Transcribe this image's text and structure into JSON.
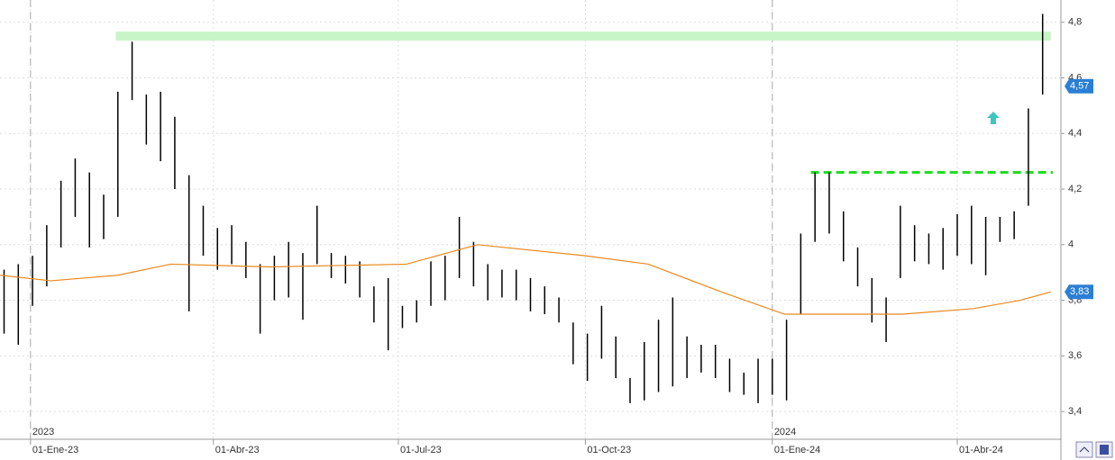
{
  "chart_data": {
    "type": "range-bar",
    "xlim": [
      "2022-12-17",
      "2024-05-22"
    ],
    "ylim": [
      3.3,
      4.88
    ],
    "yticks": [
      {
        "value": 3.4,
        "label": "3,4"
      },
      {
        "value": 3.6,
        "label": "3,6"
      },
      {
        "value": 3.8,
        "label": "3,8"
      },
      4,
      {
        "value": 4.2,
        "label": "4,2"
      },
      {
        "value": 4.4,
        "label": "4,4"
      },
      {
        "value": 4.6,
        "label": "4,6"
      },
      {
        "value": 4.8,
        "label": "4,8"
      }
    ],
    "xticks": [
      {
        "value": "2023-01-01",
        "label": "01-Ene-23"
      },
      {
        "value": "2023-04-01",
        "label": "01-Abr-23"
      },
      {
        "value": "2023-07-01",
        "label": "01-Jul-23"
      },
      {
        "value": "2023-10-01",
        "label": "01-Oct-23"
      },
      {
        "value": "2024-01-01",
        "label": "01-Ene-24"
      },
      {
        "value": "2024-04-01",
        "label": "01-Abr-24"
      }
    ],
    "year_markers": [
      {
        "value": "2023-01-01",
        "label": "2023"
      },
      {
        "value": "2024-01-01",
        "label": "2024"
      }
    ],
    "grid": true,
    "series": [
      {
        "color": "#000000",
        "x": [
          "2022-12-19",
          "2022-12-26",
          "2023-01-02",
          "2023-01-09",
          "2023-01-16",
          "2023-01-23",
          "2023-01-30",
          "2023-02-06",
          "2023-02-13",
          "2023-02-20",
          "2023-02-27",
          "2023-03-06",
          "2023-03-13",
          "2023-03-20",
          "2023-03-27",
          "2023-04-03",
          "2023-04-10",
          "2023-04-17",
          "2023-04-24",
          "2023-05-01",
          "2023-05-08",
          "2023-05-15",
          "2023-05-22",
          "2023-05-29",
          "2023-06-05",
          "2023-06-12",
          "2023-06-19",
          "2023-06-26",
          "2023-07-03",
          "2023-07-10",
          "2023-07-17",
          "2023-07-24",
          "2023-07-31",
          "2023-08-07",
          "2023-08-14",
          "2023-08-21",
          "2023-08-28",
          "2023-09-04",
          "2023-09-11",
          "2023-09-18",
          "2023-09-25",
          "2023-10-02",
          "2023-10-09",
          "2023-10-16",
          "2023-10-23",
          "2023-10-30",
          "2023-11-06",
          "2023-11-13",
          "2023-11-20",
          "2023-11-27",
          "2023-12-04",
          "2023-12-11",
          "2023-12-18",
          "2023-12-25",
          "2024-01-01",
          "2024-01-08",
          "2024-01-15",
          "2024-01-22",
          "2024-01-29",
          "2024-02-05",
          "2024-02-12",
          "2024-02-19",
          "2024-02-26",
          "2024-03-04",
          "2024-03-11",
          "2024-03-18",
          "2024-03-25",
          "2024-04-01",
          "2024-04-08",
          "2024-04-15",
          "2024-04-22",
          "2024-04-29",
          "2024-05-06",
          "2024-05-13"
        ],
        "high": [
          3.91,
          3.93,
          3.96,
          4.07,
          4.23,
          4.31,
          4.26,
          4.18,
          4.55,
          4.73,
          4.54,
          4.55,
          4.46,
          4.25,
          4.14,
          4.06,
          4.07,
          4.01,
          3.93,
          3.96,
          4.01,
          3.97,
          4.14,
          3.97,
          3.96,
          3.94,
          3.85,
          3.88,
          3.78,
          3.8,
          3.94,
          3.96,
          4.1,
          4.01,
          3.93,
          3.91,
          3.91,
          3.88,
          3.85,
          3.81,
          3.72,
          3.68,
          3.78,
          3.67,
          3.52,
          3.65,
          3.73,
          3.81,
          3.67,
          3.64,
          3.64,
          3.59,
          3.54,
          3.59,
          3.59,
          3.73,
          4.04,
          4.26,
          4.26,
          4.12,
          3.99,
          3.88,
          3.81,
          4.14,
          4.07,
          4.04,
          4.06,
          4.11,
          4.14,
          4.1,
          4.1,
          4.12,
          4.49,
          4.83
        ],
        "low": [
          3.68,
          3.64,
          3.78,
          3.85,
          3.99,
          4.1,
          3.99,
          4.02,
          4.1,
          4.52,
          4.36,
          4.3,
          4.2,
          3.76,
          3.96,
          3.91,
          3.93,
          3.88,
          3.68,
          3.8,
          3.81,
          3.73,
          3.93,
          3.88,
          3.86,
          3.81,
          3.72,
          3.62,
          3.7,
          3.72,
          3.78,
          3.8,
          3.88,
          3.85,
          3.8,
          3.81,
          3.8,
          3.76,
          3.75,
          3.72,
          3.57,
          3.51,
          3.59,
          3.52,
          3.43,
          3.44,
          3.47,
          3.49,
          3.52,
          3.54,
          3.52,
          3.47,
          3.46,
          3.43,
          3.46,
          3.44,
          3.75,
          4.01,
          4.04,
          3.94,
          3.85,
          3.72,
          3.65,
          3.88,
          3.94,
          3.93,
          3.91,
          3.96,
          3.93,
          3.89,
          4.01,
          4.02,
          4.14,
          4.54
        ]
      },
      {
        "type": "line",
        "color": "#e8891e",
        "x": [
          "2022-12-17",
          "2023-01-11",
          "2023-02-13",
          "2023-03-11",
          "2023-04-29",
          "2023-07-05",
          "2023-08-09",
          "2023-10-01",
          "2023-11-01",
          "2023-12-07",
          "2024-01-07",
          "2024-02-03",
          "2024-03-05",
          "2024-04-09",
          "2024-05-02",
          "2024-05-17"
        ],
        "values": [
          3.89,
          3.87,
          3.89,
          3.93,
          3.92,
          3.93,
          4.0,
          3.96,
          3.93,
          3.83,
          3.75,
          3.75,
          3.75,
          3.77,
          3.8,
          3.83
        ]
      }
    ],
    "levels": [
      {
        "value": 4.75,
        "start": "2023-02-12",
        "end": "2024-05-17",
        "style": "band",
        "color": "#c8f5c8"
      },
      {
        "value": 4.26,
        "start": "2024-01-20",
        "end": "2024-05-18",
        "style": "dashed",
        "color": "#22dd22"
      }
    ],
    "price_tags": [
      {
        "value": 4.57,
        "label": "4,57"
      },
      {
        "value": 3.83,
        "label": "3,83"
      }
    ]
  }
}
